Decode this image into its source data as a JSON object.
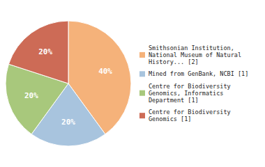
{
  "chart_data": {
    "type": "pie",
    "categories": [
      "Smithsonian Institution,\nNational Museum of Natural\nHistory... [2]",
      "Mined from GenBank, NCBI [1]",
      "Centre for Biodiversity\nGenomics, Informatics\nDepartment [1]",
      "Centre for Biodiversity\nGenomics [1]"
    ],
    "values": [
      40,
      20,
      20,
      20
    ],
    "value_labels": [
      "40%",
      "20%",
      "20%",
      "20%"
    ],
    "colors": [
      "#f5b27a",
      "#a8c4de",
      "#a8c87c",
      "#cd6b56"
    ],
    "data_labels": true,
    "legend": "right"
  }
}
